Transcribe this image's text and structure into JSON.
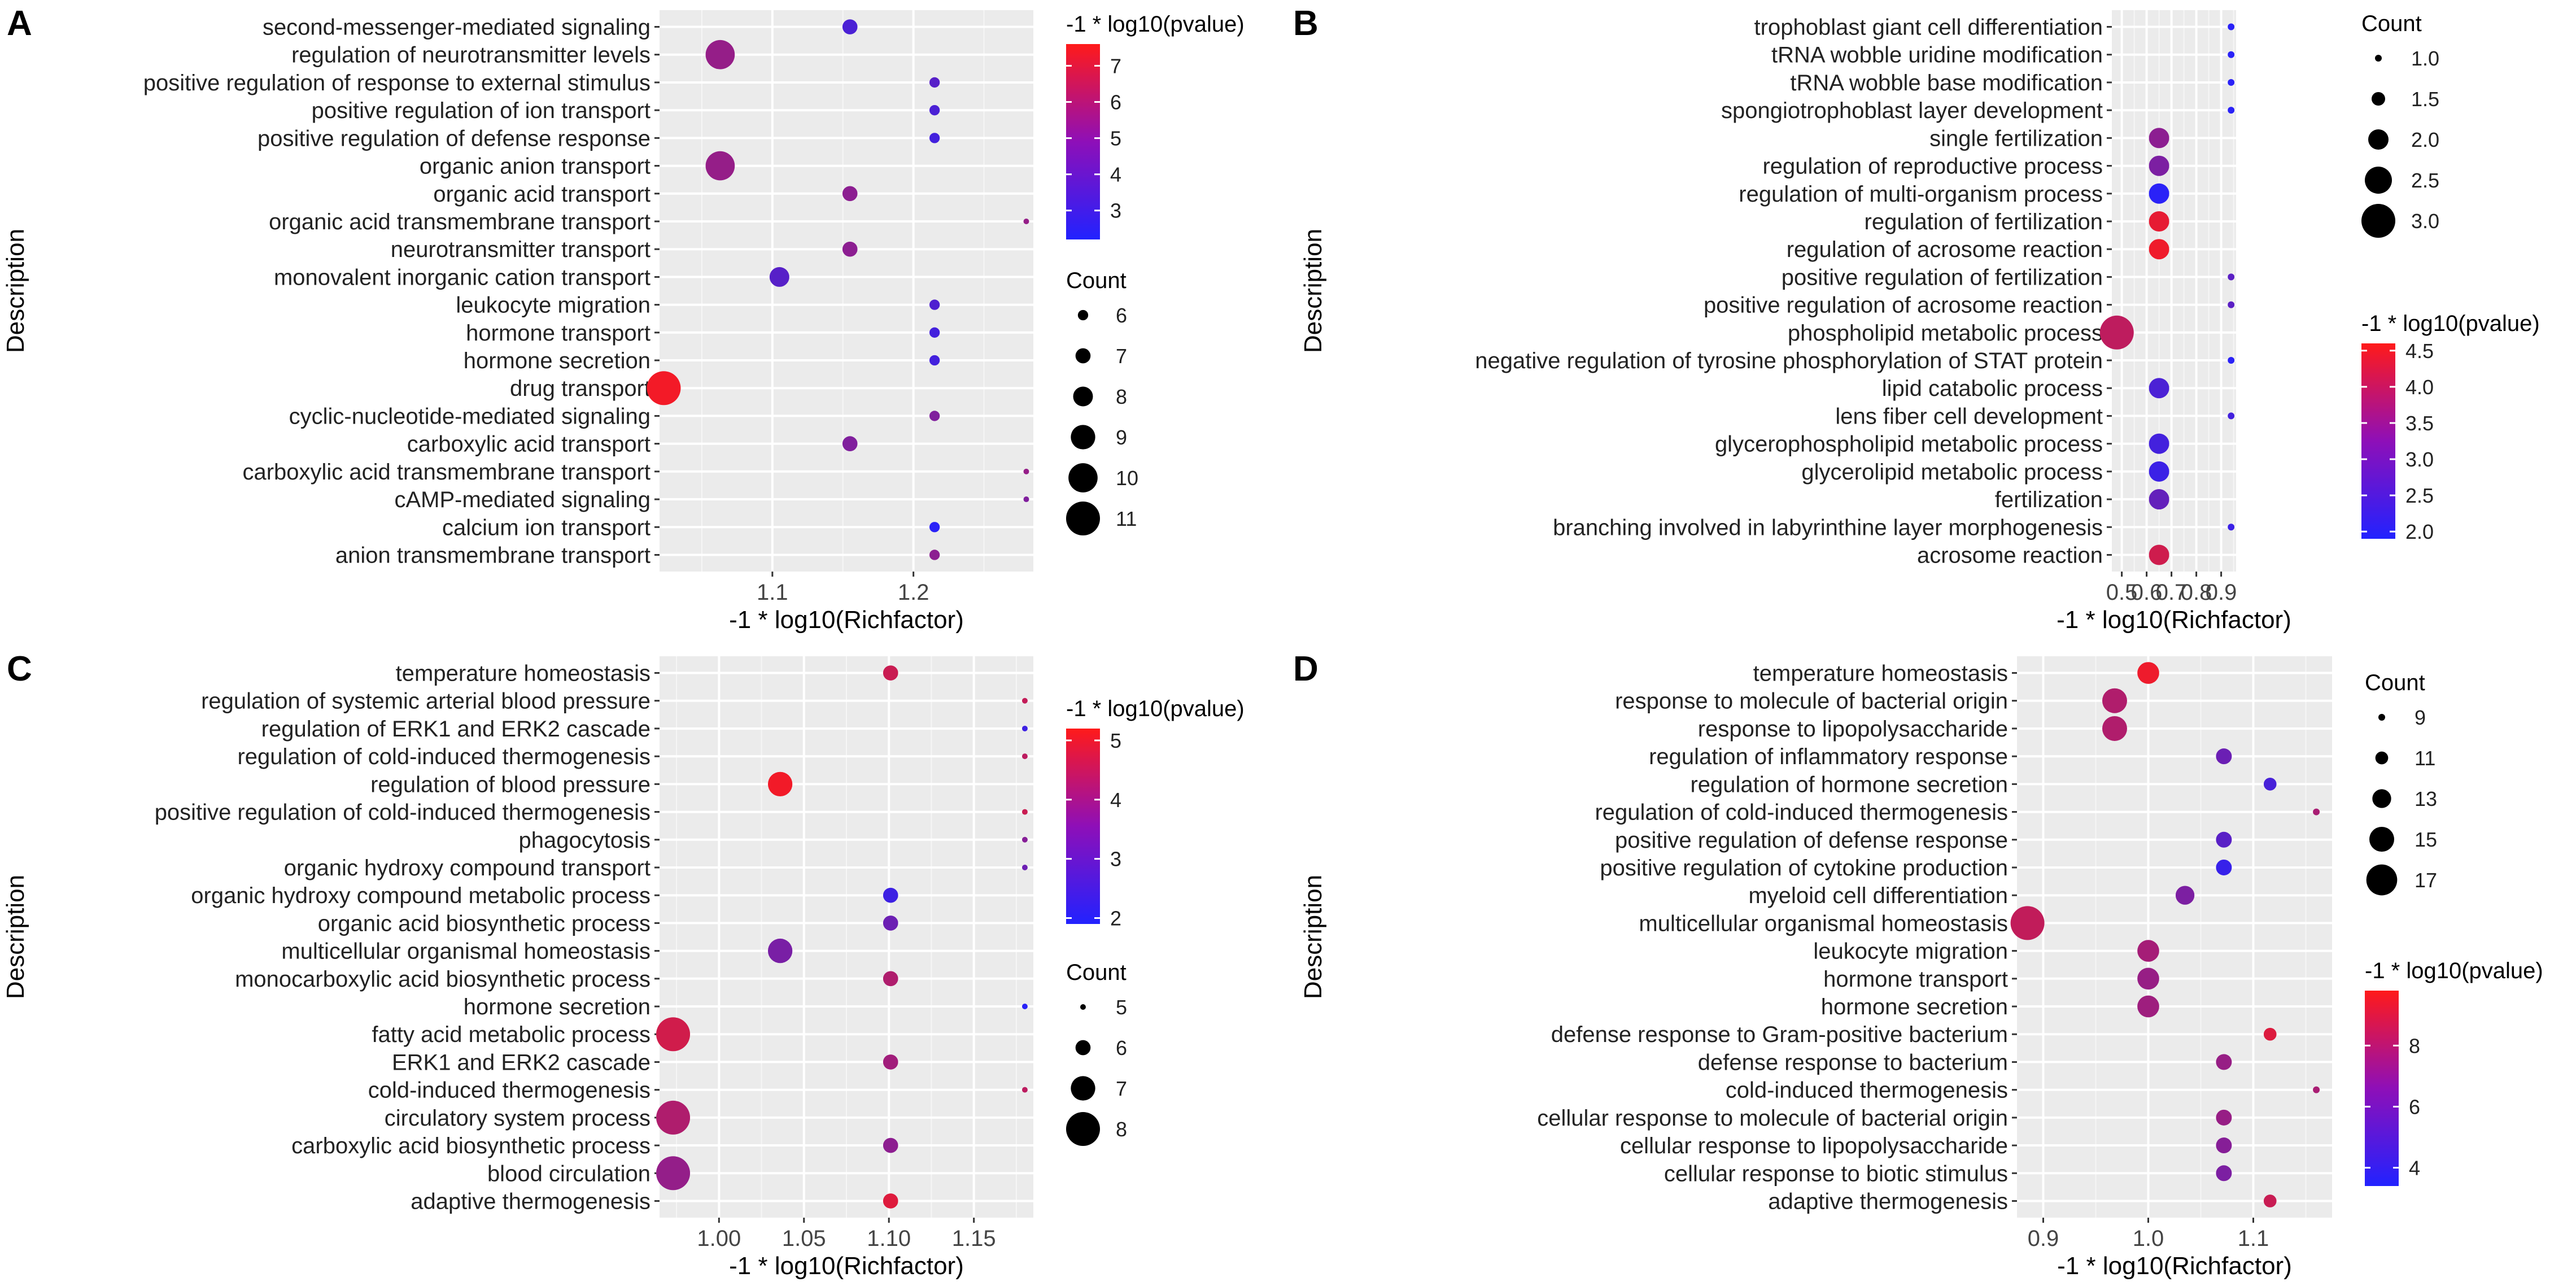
{
  "chart_data": [
    {
      "panel_label": "A",
      "type": "scatter",
      "xlabel": "-1 * log10(Richfactor)",
      "ylabel": "Description",
      "xlim": [
        1.02,
        1.285
      ],
      "x_ticks": [
        1.1,
        1.2
      ],
      "categories": [
        "second-messenger-mediated signaling",
        "regulation of neurotransmitter levels",
        "positive regulation of response to external stimulus",
        "positive regulation of ion transport",
        "positive regulation of defense response",
        "organic anion transport",
        "organic acid transport",
        "organic acid transmembrane transport",
        "neurotransmitter transport",
        "monovalent inorganic cation transport",
        "leukocyte migration",
        "hormone transport",
        "hormone secretion",
        "drug transport",
        "cyclic-nucleotide-mediated signaling",
        "carboxylic acid transport",
        "carboxylic acid transmembrane transport",
        "cAMP-mediated signaling",
        "calcium ion transport",
        "anion transmembrane transport"
      ],
      "x": [
        1.155,
        1.063,
        1.215,
        1.215,
        1.215,
        1.063,
        1.155,
        1.28,
        1.155,
        1.105,
        1.215,
        1.215,
        1.215,
        1.023,
        1.215,
        1.155,
        1.28,
        1.28,
        1.215,
        1.215
      ],
      "count": [
        7,
        10,
        6,
        6,
        6,
        10,
        7,
        5,
        7,
        8,
        6,
        6,
        6,
        11,
        6,
        7,
        5,
        5,
        6,
        6
      ],
      "pvalue": [
        3.2,
        5.0,
        3.5,
        3.2,
        3.0,
        5.0,
        4.8,
        5.0,
        4.8,
        3.5,
        3.3,
        3.0,
        3.0,
        7.3,
        4.5,
        4.5,
        5.0,
        4.5,
        2.4,
        4.8
      ],
      "color_legend": {
        "title": "-1 * log10(pvalue)",
        "range": [
          2.2,
          7.6
        ],
        "ticks": [
          3,
          4,
          5,
          6,
          7
        ]
      },
      "size_legend": {
        "title": "Count",
        "values": [
          6,
          7,
          8,
          9,
          10,
          11
        ],
        "range": [
          5,
          11
        ]
      },
      "colors": {
        "low": "#2222ff",
        "high": "#ff1a1a"
      }
    },
    {
      "panel_label": "B",
      "type": "scatter",
      "xlabel": "-1 * log10(Richfactor)",
      "ylabel": "Description",
      "xlim": [
        0.46,
        0.96
      ],
      "x_ticks": [
        0.5,
        0.6,
        0.7,
        0.8,
        0.9
      ],
      "x_tick_labels": [
        "0.5",
        "0.6",
        "0.7",
        "0.8",
        "0.9"
      ],
      "categories": [
        "trophoblast giant cell differentiation",
        "tRNA wobble uridine modification",
        "tRNA wobble base modification",
        "spongiotrophoblast layer development",
        "single fertilization",
        "regulation of reproductive process",
        "regulation of multi-organism process",
        "regulation of fertilization",
        "regulation of acrosome reaction",
        "positive regulation of fertilization",
        "positive regulation of acrosome reaction",
        "phospholipid metabolic process",
        "negative regulation of tyrosine phosphorylation of STAT protein",
        "lipid catabolic process",
        "lens fiber cell development",
        "glycerophospholipid metabolic process",
        "glycerolipid metabolic process",
        "fertilization",
        "branching involved in labyrinthine layer morphogenesis",
        "acrosome reaction"
      ],
      "x": [
        0.94,
        0.94,
        0.94,
        0.94,
        0.65,
        0.65,
        0.65,
        0.65,
        0.65,
        0.94,
        0.94,
        0.48,
        0.94,
        0.65,
        0.94,
        0.65,
        0.65,
        0.65,
        0.94,
        0.65
      ],
      "count": [
        1,
        1,
        1,
        1,
        2,
        2,
        2,
        2,
        2,
        1,
        1,
        3,
        1,
        2,
        1,
        2,
        2,
        2,
        1,
        2
      ],
      "pvalue": [
        2.0,
        2.0,
        2.0,
        2.0,
        3.2,
        3.0,
        2.0,
        4.3,
        4.4,
        2.6,
        2.6,
        3.8,
        2.0,
        2.4,
        2.3,
        2.3,
        2.2,
        2.7,
        2.2,
        4.0
      ],
      "color_legend": {
        "title": "-1 * log10(pvalue)",
        "range": [
          1.9,
          4.6
        ],
        "ticks": [
          2.0,
          2.5,
          3.0,
          3.5,
          4.0,
          4.5
        ],
        "tick_labels": [
          "2.0",
          "2.5",
          "3.0",
          "3.5",
          "4.0",
          "4.5"
        ]
      },
      "size_legend": {
        "title": "Count",
        "values": [
          1.0,
          1.5,
          2.0,
          2.5,
          3.0
        ],
        "labels": [
          "1.0",
          "1.5",
          "2.0",
          "2.5",
          "3.0"
        ],
        "range": [
          1,
          3
        ]
      },
      "colors": {
        "low": "#2222ff",
        "high": "#ff1a1a"
      }
    },
    {
      "panel_label": "C",
      "type": "scatter",
      "xlabel": "-1 * log10(Richfactor)",
      "ylabel": "Description",
      "xlim": [
        0.965,
        1.185
      ],
      "x_ticks": [
        1.0,
        1.05,
        1.1,
        1.15
      ],
      "x_tick_labels": [
        "1.00",
        "1.05",
        "1.10",
        "1.15"
      ],
      "categories": [
        "temperature homeostasis",
        "regulation of systemic arterial blood pressure",
        "regulation of ERK1 and ERK2 cascade",
        "regulation of cold-induced thermogenesis",
        "regulation of blood pressure",
        "positive regulation of cold-induced thermogenesis",
        "phagocytosis",
        "organic hydroxy compound transport",
        "organic hydroxy compound metabolic process",
        "organic acid biosynthetic process",
        "multicellular organismal homeostasis",
        "monocarboxylic acid biosynthetic process",
        "hormone secretion",
        "fatty acid metabolic process",
        "ERK1 and ERK2 cascade",
        "cold-induced thermogenesis",
        "circulatory system process",
        "carboxylic acid biosynthetic process",
        "blood circulation",
        "adaptive thermogenesis"
      ],
      "x": [
        1.101,
        1.18,
        1.18,
        1.18,
        1.036,
        1.18,
        1.18,
        1.18,
        1.101,
        1.101,
        1.036,
        1.101,
        1.18,
        0.973,
        1.101,
        1.18,
        0.973,
        1.101,
        0.973,
        1.101
      ],
      "count": [
        6,
        5,
        5,
        5,
        7,
        5,
        5,
        5,
        6,
        6,
        7,
        6,
        5,
        8,
        6,
        5,
        8,
        6,
        8,
        6
      ],
      "pvalue": [
        4.4,
        4.3,
        2.3,
        4.2,
        5.0,
        4.4,
        3.4,
        3.0,
        2.3,
        3.0,
        3.2,
        4.0,
        2.0,
        4.5,
        3.8,
        4.2,
        4.0,
        3.5,
        3.6,
        4.7
      ],
      "color_legend": {
        "title": "-1 * log10(pvalue)",
        "range": [
          1.9,
          5.2
        ],
        "ticks": [
          2,
          3,
          4,
          5
        ]
      },
      "size_legend": {
        "title": "Count",
        "values": [
          5,
          6,
          7,
          8
        ],
        "range": [
          5,
          8
        ]
      },
      "colors": {
        "low": "#2222ff",
        "high": "#ff1a1a"
      }
    },
    {
      "panel_label": "D",
      "type": "scatter",
      "xlabel": "-1 * log10(Richfactor)",
      "ylabel": "Description",
      "xlim": [
        0.875,
        1.175
      ],
      "x_ticks": [
        0.9,
        1.0,
        1.1
      ],
      "x_tick_labels": [
        "0.9",
        "1.0",
        "1.1"
      ],
      "categories": [
        "temperature homeostasis",
        "response to molecule of bacterial origin",
        "response to lipopolysaccharide",
        "regulation of inflammatory response",
        "regulation of hormone secretion",
        "regulation of cold-induced thermogenesis",
        "positive regulation of defense response",
        "positive regulation of cytokine production",
        "myeloid cell differentiation",
        "multicellular organismal homeostasis",
        "leukocyte migration",
        "hormone transport",
        "hormone secretion",
        "defense response to Gram-positive bacterium",
        "defense response to bacterium",
        "cold-induced thermogenesis",
        "cellular response to molecule of bacterial origin",
        "cellular response to lipopolysaccharide",
        "cellular response to biotic stimulus",
        "adaptive thermogenesis"
      ],
      "x": [
        1.0,
        0.968,
        0.968,
        1.072,
        1.116,
        1.16,
        1.072,
        1.072,
        1.035,
        0.885,
        1.0,
        1.0,
        1.0,
        1.116,
        1.072,
        1.16,
        1.072,
        1.072,
        1.072,
        1.116
      ],
      "count": [
        14,
        15,
        15,
        12,
        11,
        9,
        12,
        12,
        13,
        18,
        14,
        14,
        14,
        11,
        12,
        9,
        12,
        12,
        12,
        11
      ],
      "pvalue": [
        9.3,
        7.5,
        7.5,
        5.5,
        4.5,
        7.3,
        5.0,
        4.0,
        6.0,
        8.0,
        7.2,
        6.8,
        7.0,
        8.8,
        6.8,
        7.3,
        6.8,
        6.3,
        6.0,
        8.2
      ],
      "color_legend": {
        "title": "-1 * log10(pvalue)",
        "range": [
          3.4,
          9.8
        ],
        "ticks": [
          4,
          6,
          8
        ]
      },
      "size_legend": {
        "title": "Count",
        "values": [
          9,
          11,
          13,
          15,
          17
        ],
        "range": [
          9,
          18
        ]
      },
      "colors": {
        "low": "#2222ff",
        "high": "#ff1a1a"
      }
    }
  ]
}
